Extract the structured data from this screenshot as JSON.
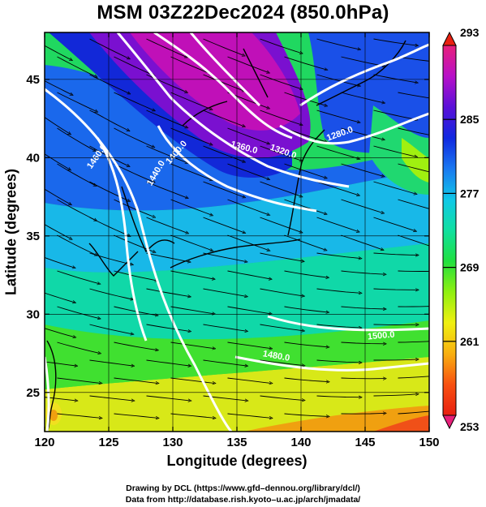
{
  "title": "MSM 03Z22Dec2024 (850.0hPa)",
  "xlabel": "Longitude (degrees)",
  "ylabel": "Latitude  (degrees)",
  "credits": [
    "Drawing by DCL (https://www.gfd–dennou.org/library/dcl/)",
    "Data from http://database.rish.kyoto–u.ac.jp/arch/jmadata/"
  ],
  "map": {
    "lon_range": [
      120,
      150
    ],
    "lat_range": [
      22.5,
      48
    ],
    "lon_ticks": [
      120,
      125,
      130,
      135,
      140,
      145,
      150
    ],
    "lat_ticks": [
      25,
      30,
      35,
      40,
      45
    ],
    "grid": true,
    "fill_field": "temperature (K)",
    "contour_field": "geopotential height (m)",
    "vectors": "wind streamlines"
  },
  "colorbar": {
    "min": 253,
    "max": 293,
    "ticks": [
      "293",
      "285",
      "277",
      "269",
      "261",
      "253"
    ],
    "colors": [
      "#e8207a",
      "#b810c8",
      "#5a10d8",
      "#1028e0",
      "#1a78f0",
      "#10c8e8",
      "#10e0a0",
      "#20e040",
      "#90f010",
      "#f0f010",
      "#f8b010",
      "#f85010",
      "#e82010"
    ]
  },
  "contour_labels": [
    {
      "text": "1460.0"
    },
    {
      "text": "1400.0"
    },
    {
      "text": "1440.0"
    },
    {
      "text": "1360.0"
    },
    {
      "text": "1320.0"
    },
    {
      "text": "1280.0"
    },
    {
      "text": "1480.0"
    },
    {
      "text": "1500.0"
    }
  ]
}
